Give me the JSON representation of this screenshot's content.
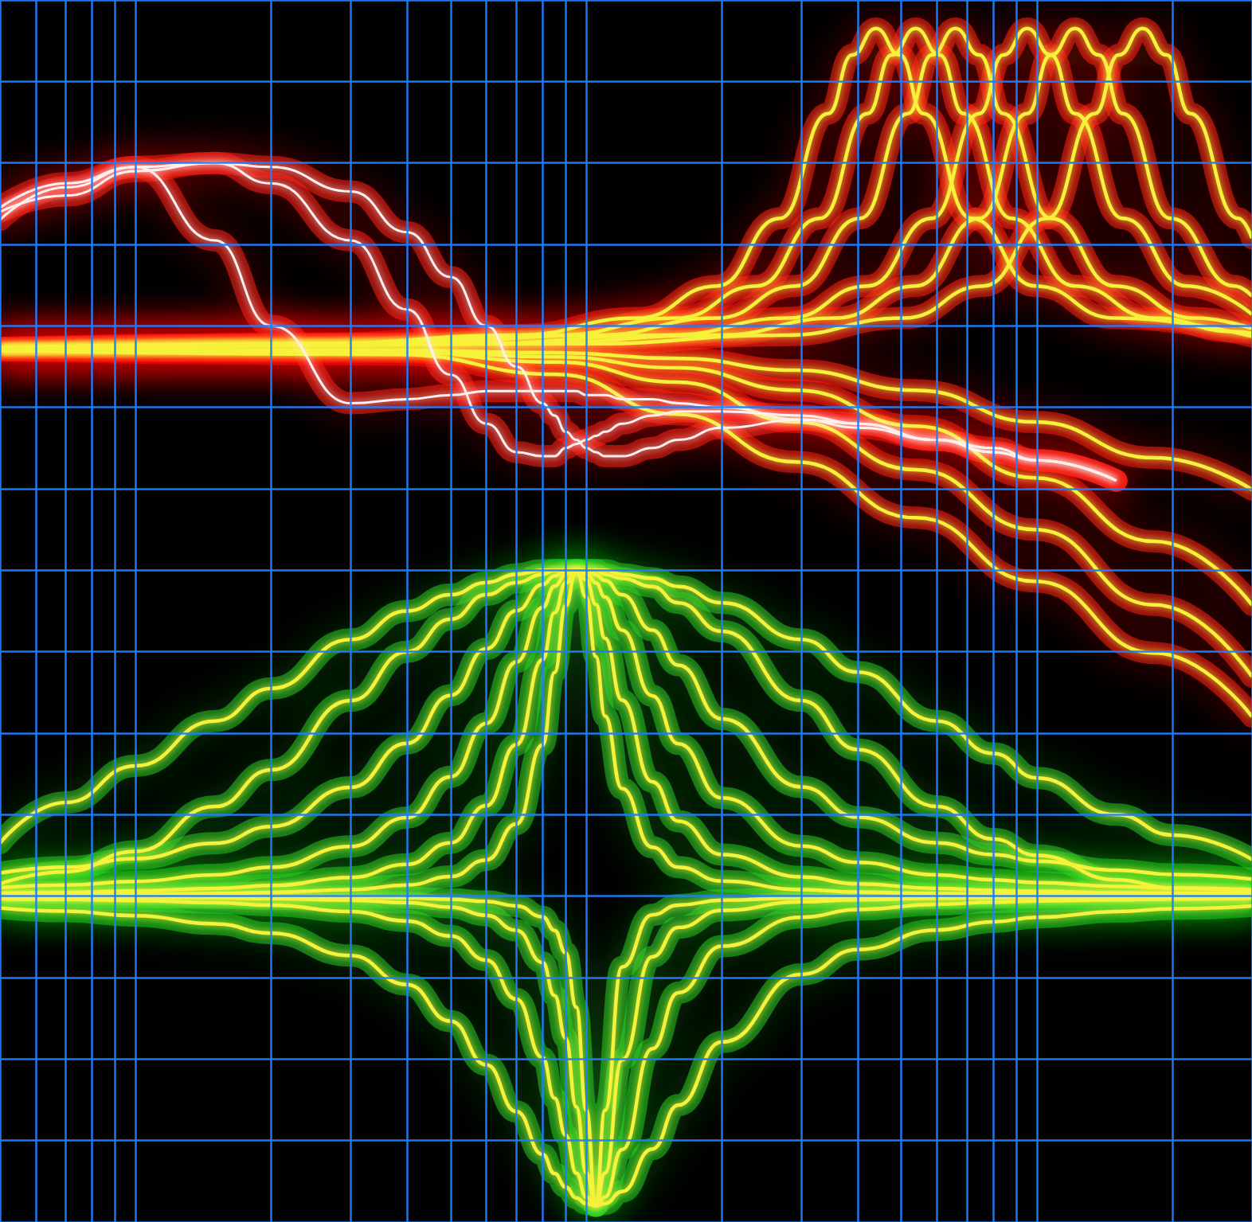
{
  "chart_data": {
    "type": "line",
    "log": "x",
    "grid": true,
    "tick_labels": false,
    "marker": "none",
    "line_style": "smooth",
    "xlim": [
      5,
      3000
    ],
    "ylim": [
      0,
      30
    ],
    "xticks": [
      5,
      6,
      7,
      8,
      9,
      10,
      20,
      30,
      40,
      50,
      60,
      70,
      80,
      90,
      100,
      200,
      300,
      400,
      500,
      600,
      700,
      800,
      900,
      1000,
      2000,
      3000
    ],
    "yticks": [
      0,
      2,
      4,
      6,
      8,
      10,
      12,
      14,
      16,
      18,
      20,
      22,
      24,
      26,
      28,
      30
    ],
    "x": [
      5,
      7,
      10,
      15,
      20,
      30,
      40,
      50,
      60,
      70,
      80,
      85,
      90,
      95,
      100,
      105,
      110,
      120,
      140,
      160,
      200,
      300,
      400,
      600,
      800,
      1000,
      1500,
      2000,
      3000
    ],
    "series": [
      {
        "color": "#f6f23a",
        "x": [
          5,
          38,
          86,
          159,
          292,
          538,
          990,
          1824,
          3000
        ],
        "values": [
          21.4,
          21.3,
          20.81,
          19.83,
          18.66,
          17.29,
          15.73,
          13.97,
          12.41
        ]
      },
      {
        "color": "#f6f23a",
        "x": [
          5,
          38,
          86,
          159,
          292,
          538,
          990,
          1824,
          3000
        ],
        "values": [
          21.4,
          21.36,
          21.11,
          20.62,
          19.64,
          18.47,
          17.0,
          15.15,
          13.39
        ]
      },
      {
        "color": "#f6f23a",
        "x": [
          5,
          38,
          86,
          159,
          292,
          538,
          990,
          1824,
          3000
        ],
        "values": [
          21.4,
          21.38,
          21.24,
          20.97,
          20.42,
          19.54,
          18.27,
          16.71,
          15.15
        ]
      },
      {
        "color": "#f6f23a",
        "x": [
          5,
          38,
          86,
          159,
          292,
          538,
          990,
          1824,
          3000
        ],
        "values": [
          21.4,
          21.4,
          21.34,
          21.2,
          20.91,
          20.42,
          19.64,
          18.76,
          17.98
        ]
      },
      {
        "color": "#f6f23a",
        "x": [
          5,
          25,
          70,
          130,
          195,
          269,
          344,
          389,
          439,
          496,
          560,
          715,
          990,
          1488,
          3000
        ],
        "values": [
          21.46,
          21.56,
          21.77,
          22.19,
          22.98,
          24.64,
          27.21,
          28.65,
          29.3,
          28.65,
          27.21,
          24.64,
          22.98,
          22.19,
          21.74
        ]
      },
      {
        "color": "#f6f23a",
        "x": [
          5,
          31,
          86,
          159,
          239,
          330,
          421,
          476,
          538,
          608,
          687,
          877,
          1214,
          1824,
          2738,
          3000
        ],
        "values": [
          21.46,
          21.56,
          21.77,
          22.19,
          22.98,
          24.64,
          27.21,
          28.65,
          29.3,
          28.65,
          27.21,
          24.64,
          22.98,
          22.19,
          21.86,
          21.82
        ]
      },
      {
        "color": "#f6f23a",
        "x": [
          5,
          38,
          106,
          195,
          292,
          405,
          517,
          584,
          659,
          745,
          842,
          1074,
          1488,
          2234,
          3000
        ],
        "values": [
          21.45,
          21.56,
          21.77,
          22.19,
          22.98,
          24.64,
          27.21,
          28.65,
          29.3,
          28.65,
          27.21,
          24.64,
          22.98,
          22.19,
          21.93
        ]
      },
      {
        "color": "#f6f23a",
        "x": [
          5,
          55,
          152,
          281,
          421,
          584,
          745,
          842,
          951,
          1074,
          1214,
          1549,
          2145,
          3000
        ],
        "values": [
          21.45,
          21.56,
          21.77,
          22.19,
          22.98,
          24.64,
          27.21,
          28.65,
          29.3,
          28.65,
          27.21,
          24.64,
          22.98,
          22.28
        ]
      },
      {
        "color": "#f6f23a",
        "x": [
          5,
          70,
          195,
          358,
          538,
          745,
          951,
          1074,
          1214,
          1372,
          1549,
          1978,
          2738,
          3000
        ],
        "values": [
          21.44,
          21.56,
          21.77,
          22.19,
          22.98,
          24.64,
          27.21,
          28.65,
          29.3,
          28.65,
          27.21,
          24.64,
          22.98,
          22.73
        ]
      },
      {
        "color": "#f6f23a",
        "x": [
          5,
          99,
          275,
          506,
          760,
          1053,
          1344,
          1518,
          1715,
          1938,
          2189,
          2795,
          3000
        ],
        "values": [
          21.44,
          21.56,
          21.77,
          22.19,
          22.98,
          24.64,
          27.21,
          28.65,
          29.3,
          28.65,
          27.21,
          24.64,
          24.15
        ]
      },
      {
        "color": "#fff0ee",
        "values": [
          24.6,
          25.4,
          25.9,
          24.1,
          22.0,
          20.1,
          20.2,
          20.3,
          20.4,
          20.4,
          20.4,
          20.4,
          20.4,
          20.4,
          20.3,
          20.3,
          20.3,
          20.2,
          20.2,
          20.1,
          20.0,
          19.7,
          19.5,
          19.2,
          18.9,
          18.7,
          18.2,
          null,
          null
        ]
      },
      {
        "color": "#fff0ee",
        "values": [
          24.9,
          25.5,
          25.9,
          26.0,
          25.5,
          24.1,
          22.4,
          20.8,
          19.6,
          18.9,
          18.8,
          18.8,
          19.0,
          19.1,
          19.2,
          19.3,
          19.4,
          19.6,
          19.8,
          19.9,
          19.9,
          19.8,
          19.6,
          19.2,
          18.9,
          18.7,
          18.2,
          null,
          null
        ]
      },
      {
        "color": "#fff0ee",
        "values": [
          24.8,
          25.2,
          25.8,
          26.0,
          25.9,
          25.3,
          24.3,
          23.2,
          22.0,
          21.0,
          20.1,
          19.8,
          19.4,
          19.2,
          19.0,
          18.9,
          18.8,
          18.8,
          19.0,
          19.2,
          19.5,
          19.7,
          19.6,
          19.2,
          19.0,
          18.7,
          18.2,
          null,
          null
        ]
      },
      {
        "color": "#f6f23a",
        "values": [
          9.3,
          10.3,
          11.2,
          12.3,
          13.1,
          14.3,
          15.0,
          15.4,
          15.7,
          15.9,
          16.0,
          16.0,
          16.0,
          16.0,
          16.0,
          16.0,
          16.0,
          15.9,
          15.8,
          15.6,
          15.2,
          14.3,
          13.5,
          12.3,
          11.5,
          10.9,
          10.0,
          9.5,
          8.9
        ]
      },
      {
        "color": "#f6f23a",
        "values": [
          8.3,
          8.6,
          9.1,
          10.2,
          11.1,
          12.8,
          14.0,
          14.8,
          15.4,
          15.7,
          15.9,
          16.0,
          16.0,
          16.0,
          16.0,
          16.0,
          15.9,
          15.8,
          15.6,
          15.2,
          14.5,
          12.8,
          11.6,
          10.2,
          9.4,
          9.0,
          8.4,
          8.2,
          8.1
        ]
      },
      {
        "color": "#f6f23a",
        "values": [
          8.57,
          8.71,
          8.92,
          9.3,
          9.71,
          10.67,
          11.75,
          12.93,
          14.07,
          15.01,
          15.65,
          15.86,
          15.96,
          16.0,
          15.97,
          15.89,
          15.75,
          15.4,
          14.53,
          13.67,
          12.35,
          10.68,
          9.94,
          9.31,
          9.02,
          8.86,
          8.64,
          8.53,
          8.42
        ]
      },
      {
        "color": "#f6f23a",
        "values": [
          8.21,
          8.27,
          8.36,
          8.52,
          8.71,
          9.22,
          9.93,
          10.93,
          12.24,
          13.75,
          15.09,
          15.61,
          15.89,
          16.0,
          15.92,
          15.69,
          15.34,
          14.53,
          12.92,
          11.74,
          10.41,
          9.23,
          8.83,
          8.52,
          8.4,
          8.33,
          8.24,
          8.2,
          8.16
        ]
      },
      {
        "color": "#f6f23a",
        "values": [
          8.07,
          8.09,
          8.13,
          8.19,
          8.26,
          8.46,
          8.78,
          9.31,
          10.22,
          11.72,
          13.81,
          14.96,
          15.69,
          16.0,
          15.77,
          15.16,
          14.33,
          12.81,
          10.81,
          9.84,
          9.02,
          8.47,
          8.3,
          8.19,
          8.14,
          8.12,
          8.08,
          8.07,
          8.05
        ]
      },
      {
        "color": "#f6f23a",
        "values": [
          8.02,
          8.03,
          8.04,
          8.06,
          8.09,
          8.16,
          8.27,
          8.48,
          8.89,
          9.77,
          11.71,
          13.49,
          15.13,
          16.0,
          15.34,
          13.88,
          12.42,
          10.64,
          9.2,
          8.71,
          8.37,
          8.16,
          8.1,
          8.06,
          8.05,
          8.04,
          8.03,
          8.02,
          8.02
        ]
      },
      {
        "color": "#f6f23a",
        "values": [
          7.71,
          7.63,
          7.52,
          7.32,
          7.09,
          6.54,
          5.83,
          4.93,
          3.86,
          2.71,
          1.66,
          1.19,
          0.86,
          0.59,
          0.45,
          0.4,
          0.45,
          0.75,
          1.79,
          2.87,
          4.42,
          6.08,
          6.69,
          7.17,
          7.37,
          7.48,
          7.62,
          7.69,
          7.76
        ]
      },
      {
        "color": "#f6f23a",
        "values": [
          7.93,
          7.92,
          7.89,
          7.84,
          7.78,
          7.62,
          7.39,
          7.02,
          6.43,
          5.47,
          4.03,
          3.04,
          2.13,
          1.2,
          0.61,
          0.4,
          0.61,
          1.78,
          4.25,
          5.63,
          6.77,
          7.48,
          7.67,
          7.8,
          7.85,
          7.88,
          7.91,
          7.93,
          7.95
        ]
      },
      {
        "color": "#f6f23a",
        "values": [
          7.98,
          7.98,
          7.97,
          7.96,
          7.94,
          7.9,
          7.84,
          7.73,
          7.53,
          7.16,
          6.37,
          5.56,
          4.51,
          2.83,
          1.2,
          0.4,
          1.2,
          3.98,
          6.51,
          7.23,
          7.65,
          7.86,
          7.91,
          7.95,
          7.96,
          7.97,
          7.98,
          7.99,
          7.99
        ]
      },
      {
        "color": "#f6f23a",
        "values": [
          8.0,
          8.0,
          7.99,
          7.99,
          7.99,
          7.98,
          7.96,
          7.92,
          7.87,
          7.76,
          7.49,
          7.16,
          6.61,
          5.27,
          2.74,
          0.4,
          2.74,
          6.26,
          7.54,
          7.78,
          7.9,
          7.96,
          7.98,
          7.98,
          7.99,
          7.99,
          7.99,
          8.0,
          8.0
        ]
      }
    ]
  }
}
